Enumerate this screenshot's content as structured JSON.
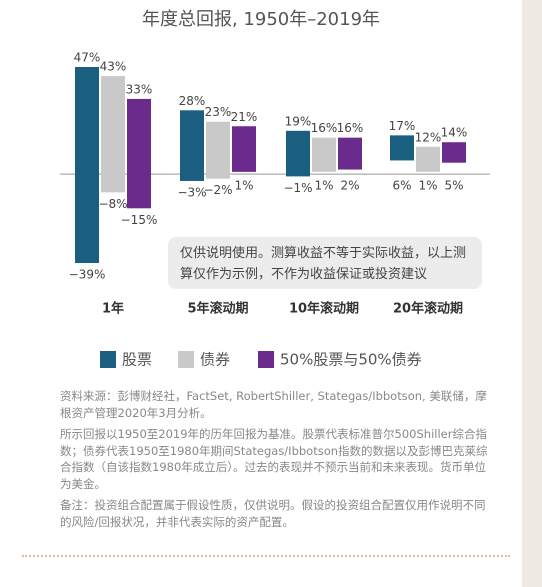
{
  "chart_data": {
    "type": "range-bar",
    "title": "年度总回报, 1950年–2019年",
    "categories": [
      "1年",
      "5年滚动期",
      "10年滚动期",
      "20年滚动期"
    ],
    "series": [
      {
        "name": "股票",
        "color": "#1b5f80",
        "values": [
          47,
          28,
          19,
          17
        ],
        "value_labels": [
          "47%",
          "28%",
          "19%",
          "17%"
        ],
        "lows": [
          -39,
          -3,
          -1,
          6
        ],
        "low_labels": [
          "−39%",
          "−3%",
          "−1%",
          "6%"
        ]
      },
      {
        "name": "债券",
        "color": "#c9c9c9",
        "values": [
          43,
          23,
          16,
          12
        ],
        "value_labels": [
          "43%",
          "23%",
          "16%",
          "12%"
        ],
        "lows": [
          -8,
          -2,
          1,
          1
        ],
        "low_labels": [
          "−8%",
          "−2%",
          "1%",
          "1%"
        ]
      },
      {
        "name": "50%股票与50%债券",
        "color": "#6b2b8c",
        "values": [
          33,
          21,
          16,
          14
        ],
        "value_labels": [
          "33%",
          "21%",
          "16%",
          "14%"
        ],
        "lows": [
          -15,
          1,
          2,
          5
        ],
        "low_labels": [
          "−15%",
          "1%",
          "2%",
          "5%"
        ]
      }
    ],
    "note": "仅供说明使用。测算收益不等于实际收益，以上测算仅作为示例，不作为收益保证或投资建议"
  },
  "footnotes": [
    "资料来源：彭博财经社，FactSet, RobertShiller, Stategas/Ibbotson, 美联储，摩根资产管理2020年3月分析。",
    "所示回报以1950至2019年的历年回报为基准。股票代表标准普尔500Shiller综合指数；债券代表1950至1980年期间Stategas/Ibbotson指数的数据以及彭博巴克莱综合指数（自该指数1980年成立后）。过去的表现并不预示当前和未来表现。货币单位为美金。",
    "备注：投资组合配置属于假设性质，仅供说明。假设的投资组合配置仅用作说明不同的风险/回报状况，并非代表实际的资产配置。"
  ]
}
